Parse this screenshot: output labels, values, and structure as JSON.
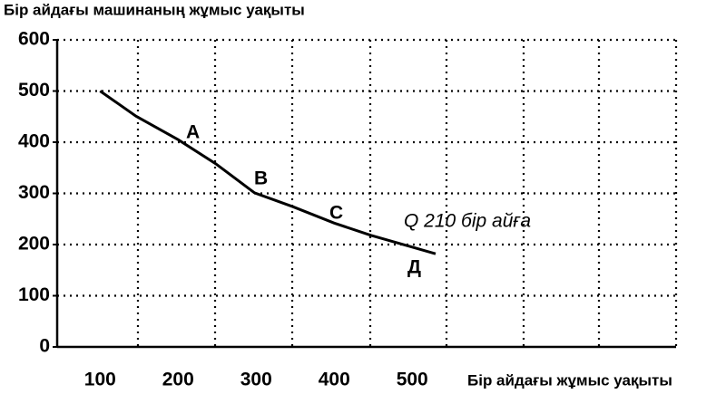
{
  "chart_data": {
    "type": "line",
    "title": "Бір айдағы машинаның жұмыс уақыты",
    "x_label": "Бір айдағы жұмыс уақыты",
    "x": [
      100,
      146,
      200,
      248,
      298,
      347,
      400,
      447,
      498,
      530
    ],
    "series": [
      {
        "color": "#000000",
        "values": [
          500,
          451,
          405,
          358,
          301,
          274,
          242,
          218,
          196,
          182
        ]
      }
    ],
    "xlim": [
      45,
      830
    ],
    "xticks": [
      100,
      200,
      300,
      400,
      500
    ],
    "ylim": [
      0,
      600
    ],
    "yticks": [
      0,
      100,
      200,
      300,
      400,
      500,
      600
    ],
    "grid": true,
    "annotations": [
      "A",
      "B",
      "C",
      "Q 210 бір айға",
      "Д"
    ]
  }
}
